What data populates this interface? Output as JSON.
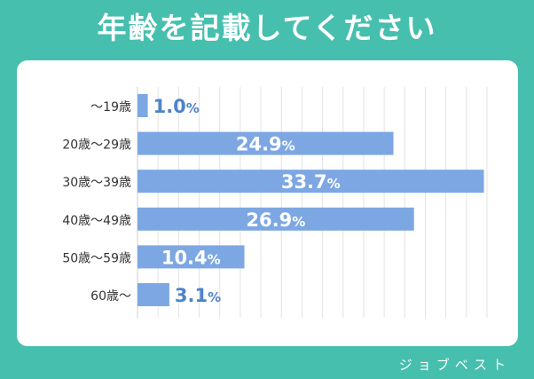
{
  "header": {
    "title": "年齢を記載してください"
  },
  "watermark": "ジョブベスト",
  "colors": {
    "background": "#46bfae",
    "bar": "#7da7e3",
    "label_on_bar": "#ffffff",
    "label_off_bar": "#4d83c9",
    "grid": "#e3e3e3"
  },
  "chart_data": {
    "type": "bar",
    "orientation": "horizontal",
    "title": "年齢を記載してください",
    "categories": [
      "～19歳",
      "20歳～29歳",
      "30歳～39歳",
      "40歳～49歳",
      "50歳～59歳",
      "60歳～"
    ],
    "values": [
      1.0,
      24.9,
      33.7,
      26.9,
      10.4,
      3.1
    ],
    "value_labels": [
      "1.0",
      "24.9",
      "33.7",
      "26.9",
      "10.4",
      "3.1"
    ],
    "unit": "%",
    "xlim": [
      0,
      34
    ],
    "grid": true,
    "legend": "none"
  }
}
